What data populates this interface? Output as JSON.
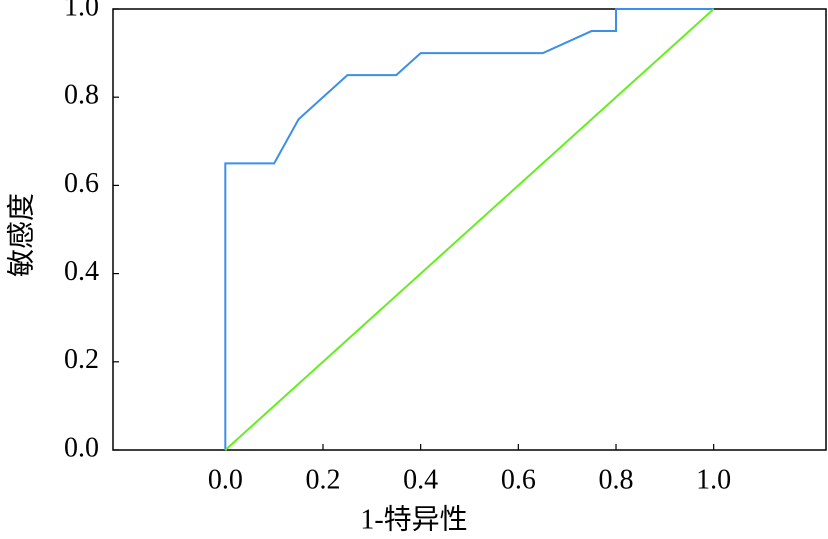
{
  "chart_data": {
    "type": "line",
    "x_label": "1-特异性",
    "y_label": "敏感度",
    "series": [
      {
        "color": "#3a8fe6",
        "x": [
          0,
          0,
          0.1,
          0.15,
          0.25,
          0.35,
          0.4,
          0.65,
          0.75,
          0.8,
          0.8,
          1.0
        ],
        "values": [
          0,
          0.65,
          0.65,
          0.75,
          0.85,
          0.85,
          0.9,
          0.9,
          0.95,
          0.95,
          1.0,
          1.0
        ]
      },
      {
        "color": "#66ee22",
        "x": [
          0,
          1.0
        ],
        "values": [
          0,
          1.0
        ]
      }
    ],
    "xlim": [
      -0.23,
      1.23
    ],
    "ylim": [
      0,
      1.0
    ],
    "xticks": [
      {
        "value": 0,
        "label": "0.0"
      },
      0.2,
      0.4,
      0.6,
      0.8,
      {
        "value": 1.0,
        "label": "1.0"
      }
    ],
    "yticks": [
      {
        "value": 0,
        "label": "0.0"
      },
      0.2,
      0.4,
      0.6,
      0.8,
      {
        "value": 1.0,
        "label": "1.0"
      }
    ],
    "grid": false
  }
}
